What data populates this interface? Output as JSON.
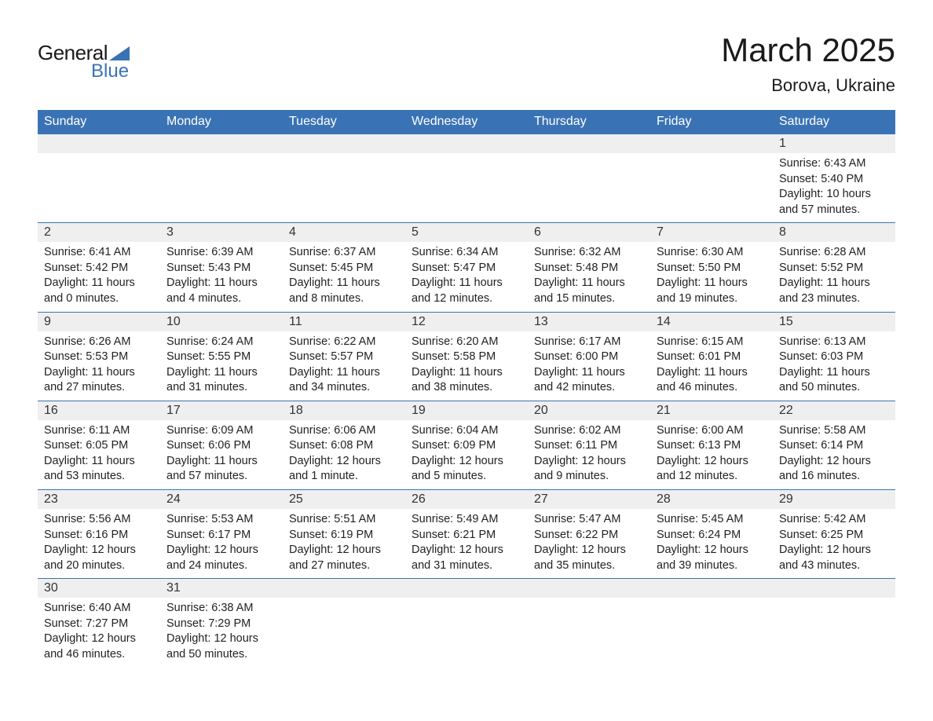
{
  "logo": {
    "general_text": "General",
    "blue_text": "Blue",
    "triangle_color": "#3a73b5"
  },
  "title": {
    "month": "March 2025",
    "location": "Borova, Ukraine"
  },
  "colors": {
    "header_bg": "#3a73b5",
    "header_text": "#ffffff",
    "daynum_bg": "#efefef",
    "border": "#3a73b5",
    "text": "#222222"
  },
  "day_headers": [
    "Sunday",
    "Monday",
    "Tuesday",
    "Wednesday",
    "Thursday",
    "Friday",
    "Saturday"
  ],
  "weeks": [
    [
      {
        "day": "",
        "sunrise": "",
        "sunset": "",
        "daylight": ""
      },
      {
        "day": "",
        "sunrise": "",
        "sunset": "",
        "daylight": ""
      },
      {
        "day": "",
        "sunrise": "",
        "sunset": "",
        "daylight": ""
      },
      {
        "day": "",
        "sunrise": "",
        "sunset": "",
        "daylight": ""
      },
      {
        "day": "",
        "sunrise": "",
        "sunset": "",
        "daylight": ""
      },
      {
        "day": "",
        "sunrise": "",
        "sunset": "",
        "daylight": ""
      },
      {
        "day": "1",
        "sunrise": "Sunrise: 6:43 AM",
        "sunset": "Sunset: 5:40 PM",
        "daylight": "Daylight: 10 hours and 57 minutes."
      }
    ],
    [
      {
        "day": "2",
        "sunrise": "Sunrise: 6:41 AM",
        "sunset": "Sunset: 5:42 PM",
        "daylight": "Daylight: 11 hours and 0 minutes."
      },
      {
        "day": "3",
        "sunrise": "Sunrise: 6:39 AM",
        "sunset": "Sunset: 5:43 PM",
        "daylight": "Daylight: 11 hours and 4 minutes."
      },
      {
        "day": "4",
        "sunrise": "Sunrise: 6:37 AM",
        "sunset": "Sunset: 5:45 PM",
        "daylight": "Daylight: 11 hours and 8 minutes."
      },
      {
        "day": "5",
        "sunrise": "Sunrise: 6:34 AM",
        "sunset": "Sunset: 5:47 PM",
        "daylight": "Daylight: 11 hours and 12 minutes."
      },
      {
        "day": "6",
        "sunrise": "Sunrise: 6:32 AM",
        "sunset": "Sunset: 5:48 PM",
        "daylight": "Daylight: 11 hours and 15 minutes."
      },
      {
        "day": "7",
        "sunrise": "Sunrise: 6:30 AM",
        "sunset": "Sunset: 5:50 PM",
        "daylight": "Daylight: 11 hours and 19 minutes."
      },
      {
        "day": "8",
        "sunrise": "Sunrise: 6:28 AM",
        "sunset": "Sunset: 5:52 PM",
        "daylight": "Daylight: 11 hours and 23 minutes."
      }
    ],
    [
      {
        "day": "9",
        "sunrise": "Sunrise: 6:26 AM",
        "sunset": "Sunset: 5:53 PM",
        "daylight": "Daylight: 11 hours and 27 minutes."
      },
      {
        "day": "10",
        "sunrise": "Sunrise: 6:24 AM",
        "sunset": "Sunset: 5:55 PM",
        "daylight": "Daylight: 11 hours and 31 minutes."
      },
      {
        "day": "11",
        "sunrise": "Sunrise: 6:22 AM",
        "sunset": "Sunset: 5:57 PM",
        "daylight": "Daylight: 11 hours and 34 minutes."
      },
      {
        "day": "12",
        "sunrise": "Sunrise: 6:20 AM",
        "sunset": "Sunset: 5:58 PM",
        "daylight": "Daylight: 11 hours and 38 minutes."
      },
      {
        "day": "13",
        "sunrise": "Sunrise: 6:17 AM",
        "sunset": "Sunset: 6:00 PM",
        "daylight": "Daylight: 11 hours and 42 minutes."
      },
      {
        "day": "14",
        "sunrise": "Sunrise: 6:15 AM",
        "sunset": "Sunset: 6:01 PM",
        "daylight": "Daylight: 11 hours and 46 minutes."
      },
      {
        "day": "15",
        "sunrise": "Sunrise: 6:13 AM",
        "sunset": "Sunset: 6:03 PM",
        "daylight": "Daylight: 11 hours and 50 minutes."
      }
    ],
    [
      {
        "day": "16",
        "sunrise": "Sunrise: 6:11 AM",
        "sunset": "Sunset: 6:05 PM",
        "daylight": "Daylight: 11 hours and 53 minutes."
      },
      {
        "day": "17",
        "sunrise": "Sunrise: 6:09 AM",
        "sunset": "Sunset: 6:06 PM",
        "daylight": "Daylight: 11 hours and 57 minutes."
      },
      {
        "day": "18",
        "sunrise": "Sunrise: 6:06 AM",
        "sunset": "Sunset: 6:08 PM",
        "daylight": "Daylight: 12 hours and 1 minute."
      },
      {
        "day": "19",
        "sunrise": "Sunrise: 6:04 AM",
        "sunset": "Sunset: 6:09 PM",
        "daylight": "Daylight: 12 hours and 5 minutes."
      },
      {
        "day": "20",
        "sunrise": "Sunrise: 6:02 AM",
        "sunset": "Sunset: 6:11 PM",
        "daylight": "Daylight: 12 hours and 9 minutes."
      },
      {
        "day": "21",
        "sunrise": "Sunrise: 6:00 AM",
        "sunset": "Sunset: 6:13 PM",
        "daylight": "Daylight: 12 hours and 12 minutes."
      },
      {
        "day": "22",
        "sunrise": "Sunrise: 5:58 AM",
        "sunset": "Sunset: 6:14 PM",
        "daylight": "Daylight: 12 hours and 16 minutes."
      }
    ],
    [
      {
        "day": "23",
        "sunrise": "Sunrise: 5:56 AM",
        "sunset": "Sunset: 6:16 PM",
        "daylight": "Daylight: 12 hours and 20 minutes."
      },
      {
        "day": "24",
        "sunrise": "Sunrise: 5:53 AM",
        "sunset": "Sunset: 6:17 PM",
        "daylight": "Daylight: 12 hours and 24 minutes."
      },
      {
        "day": "25",
        "sunrise": "Sunrise: 5:51 AM",
        "sunset": "Sunset: 6:19 PM",
        "daylight": "Daylight: 12 hours and 27 minutes."
      },
      {
        "day": "26",
        "sunrise": "Sunrise: 5:49 AM",
        "sunset": "Sunset: 6:21 PM",
        "daylight": "Daylight: 12 hours and 31 minutes."
      },
      {
        "day": "27",
        "sunrise": "Sunrise: 5:47 AM",
        "sunset": "Sunset: 6:22 PM",
        "daylight": "Daylight: 12 hours and 35 minutes."
      },
      {
        "day": "28",
        "sunrise": "Sunrise: 5:45 AM",
        "sunset": "Sunset: 6:24 PM",
        "daylight": "Daylight: 12 hours and 39 minutes."
      },
      {
        "day": "29",
        "sunrise": "Sunrise: 5:42 AM",
        "sunset": "Sunset: 6:25 PM",
        "daylight": "Daylight: 12 hours and 43 minutes."
      }
    ],
    [
      {
        "day": "30",
        "sunrise": "Sunrise: 6:40 AM",
        "sunset": "Sunset: 7:27 PM",
        "daylight": "Daylight: 12 hours and 46 minutes."
      },
      {
        "day": "31",
        "sunrise": "Sunrise: 6:38 AM",
        "sunset": "Sunset: 7:29 PM",
        "daylight": "Daylight: 12 hours and 50 minutes."
      },
      {
        "day": "",
        "sunrise": "",
        "sunset": "",
        "daylight": ""
      },
      {
        "day": "",
        "sunrise": "",
        "sunset": "",
        "daylight": ""
      },
      {
        "day": "",
        "sunrise": "",
        "sunset": "",
        "daylight": ""
      },
      {
        "day": "",
        "sunrise": "",
        "sunset": "",
        "daylight": ""
      },
      {
        "day": "",
        "sunrise": "",
        "sunset": "",
        "daylight": ""
      }
    ]
  ]
}
